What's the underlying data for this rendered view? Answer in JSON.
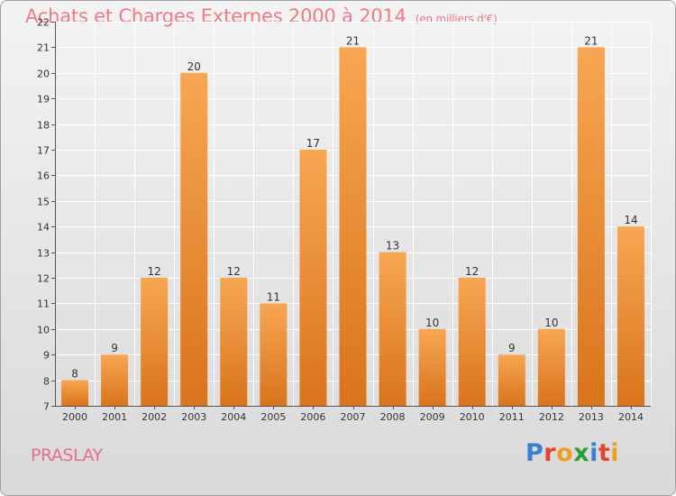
{
  "title": "Achats et Charges Externes 2000 à 2014",
  "unit": "(en milliers d'€)",
  "location": "PRASLAY",
  "logo": {
    "letters": [
      "P",
      "r",
      "o",
      "x",
      "i",
      "t",
      "i"
    ],
    "colors": [
      "#3a7fd0",
      "#e2442f",
      "#f0a020",
      "#2d9d3a",
      "#3a7fd0",
      "#e2442f",
      "#f0a020"
    ]
  },
  "colors": {
    "bar_light": "#f7a652",
    "bar_dark": "#d9741c",
    "title": "#f07a8a"
  },
  "chart_data": {
    "type": "bar",
    "title": "Achats et Charges Externes 2000 à 2014",
    "subtitle": "(en milliers d'€)",
    "categories": [
      "2000",
      "2001",
      "2002",
      "2003",
      "2004",
      "2005",
      "2006",
      "2007",
      "2008",
      "2009",
      "2010",
      "2011",
      "2012",
      "2013",
      "2014"
    ],
    "values": [
      8,
      9,
      12,
      20,
      12,
      11,
      17,
      21,
      13,
      10,
      12,
      9,
      10,
      21,
      14
    ],
    "ylim": [
      7,
      22
    ],
    "yticks": [
      7,
      8,
      9,
      10,
      11,
      12,
      13,
      14,
      15,
      16,
      17,
      18,
      19,
      20,
      21,
      22
    ],
    "grid": true,
    "xlabel": "",
    "ylabel": ""
  }
}
